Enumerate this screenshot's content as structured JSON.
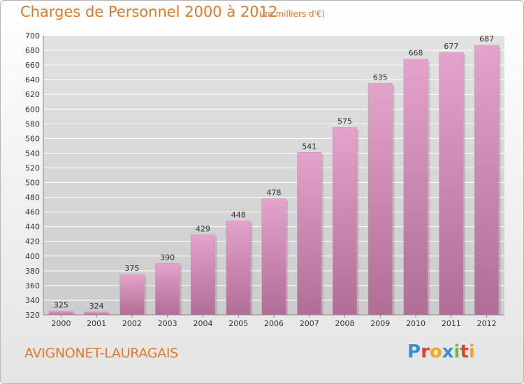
{
  "header": {
    "title": "Charges de Personnel 2000 à 2012",
    "subtitle": "(en milliers d'€)"
  },
  "footer": {
    "commune": "AVIGNONET-LAURAGAIS",
    "logo_letters": [
      {
        "char": "P",
        "color": "#3b8fd1"
      },
      {
        "char": "r",
        "color": "#e0442f"
      },
      {
        "char": "o",
        "color": "#f2a81d"
      },
      {
        "char": "x",
        "color": "#3b8fd1"
      },
      {
        "char": "i",
        "color": "#7bb832"
      },
      {
        "char": "t",
        "color": "#e0442f"
      },
      {
        "char": "i",
        "color": "#f2a81d"
      }
    ]
  },
  "colors": {
    "bar_light": "#e4a3cb",
    "bar_dark": "#b06d96",
    "grid": "#ffffff",
    "plot_bg": "#d3d3d3",
    "accent": "#e07a2e"
  },
  "chart_data": {
    "type": "bar",
    "title": "Charges de Personnel 2000 à 2012",
    "subtitle": "(en milliers d'€)",
    "categories": [
      "2000",
      "2001",
      "2002",
      "2003",
      "2004",
      "2005",
      "2006",
      "2007",
      "2008",
      "2009",
      "2010",
      "2011",
      "2012"
    ],
    "values": [
      325,
      324,
      375,
      390,
      429,
      448,
      478,
      541,
      575,
      635,
      668,
      677,
      687
    ],
    "ylim": [
      320,
      700
    ],
    "ytick_step": 20,
    "grid": true
  }
}
